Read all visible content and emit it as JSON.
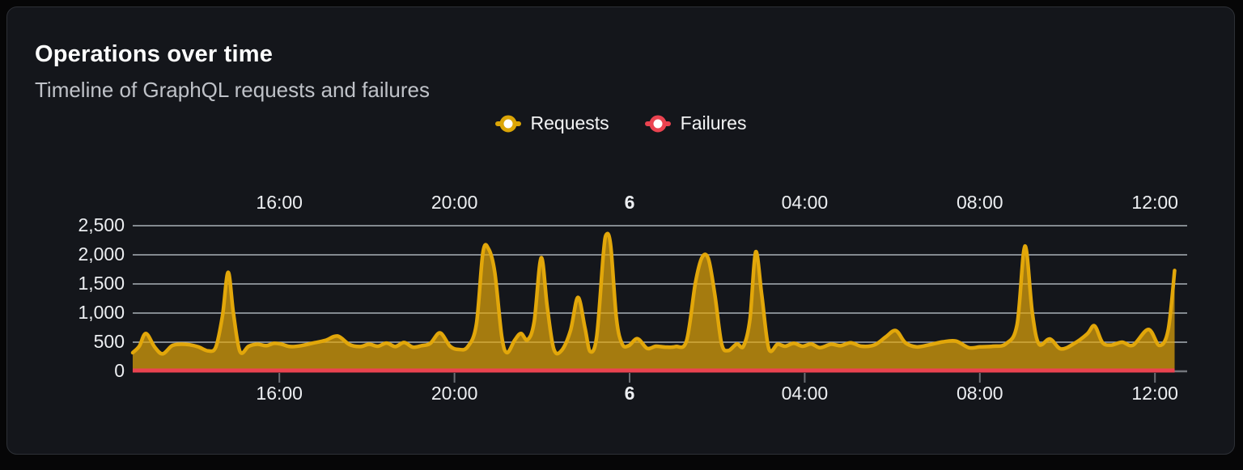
{
  "header": {
    "title": "Operations over time",
    "subtitle": "Timeline of GraphQL requests and failures"
  },
  "legend": {
    "items": [
      {
        "label": "Requests",
        "color": "#dba507"
      },
      {
        "label": "Failures",
        "color": "#ea4350"
      }
    ]
  },
  "chart_data": {
    "type": "area",
    "title": "Operations over time",
    "grid": true,
    "legend_position": "top-center",
    "colors": {
      "requests_line": "#e2a70a",
      "requests_fill_opacity": 0.7,
      "failures_line": "#ea4350",
      "gridline": "#ccd2da",
      "axis_line": "#73767c",
      "tick": "#6b6e74"
    },
    "x_axis": {
      "unit": "hours relative to midnight of day 6",
      "range": [
        -11.35,
        12.74
      ],
      "ticks": [
        {
          "pos": -8,
          "label": "16:00",
          "bold": false
        },
        {
          "pos": -4,
          "label": "20:00",
          "bold": false
        },
        {
          "pos": 0,
          "label": "6",
          "bold": true
        },
        {
          "pos": 4,
          "label": "04:00",
          "bold": false
        },
        {
          "pos": 8,
          "label": "08:00",
          "bold": false
        },
        {
          "pos": 12,
          "label": "12:00",
          "bold": false
        }
      ],
      "labels_shown": "top and bottom"
    },
    "y_axis": {
      "range": [
        0,
        2500
      ],
      "ticks": [
        {
          "value": 0,
          "label": "0"
        },
        {
          "value": 500,
          "label": "500"
        },
        {
          "value": 1000,
          "label": "1,000"
        },
        {
          "value": 1500,
          "label": "1,500"
        },
        {
          "value": 2000,
          "label": "2,000"
        },
        {
          "value": 2500,
          "label": "2,500"
        }
      ]
    },
    "series": [
      {
        "name": "Requests",
        "type": "area",
        "points": [
          [
            -11.35,
            320
          ],
          [
            -11.2,
            430
          ],
          [
            -11.05,
            650
          ],
          [
            -10.85,
            420
          ],
          [
            -10.67,
            300
          ],
          [
            -10.45,
            440
          ],
          [
            -10.25,
            465
          ],
          [
            -10.05,
            455
          ],
          [
            -9.85,
            420
          ],
          [
            -9.62,
            350
          ],
          [
            -9.45,
            420
          ],
          [
            -9.3,
            950
          ],
          [
            -9.17,
            1700
          ],
          [
            -9.05,
            1000
          ],
          [
            -8.9,
            340
          ],
          [
            -8.7,
            430
          ],
          [
            -8.5,
            465
          ],
          [
            -8.3,
            440
          ],
          [
            -8.12,
            480
          ],
          [
            -7.95,
            465
          ],
          [
            -7.75,
            425
          ],
          [
            -7.5,
            440
          ],
          [
            -7.2,
            490
          ],
          [
            -6.95,
            530
          ],
          [
            -6.67,
            605
          ],
          [
            -6.4,
            460
          ],
          [
            -6.15,
            425
          ],
          [
            -5.95,
            465
          ],
          [
            -5.75,
            430
          ],
          [
            -5.55,
            485
          ],
          [
            -5.35,
            425
          ],
          [
            -5.15,
            495
          ],
          [
            -4.95,
            415
          ],
          [
            -4.75,
            440
          ],
          [
            -4.55,
            480
          ],
          [
            -4.33,
            660
          ],
          [
            -4.1,
            430
          ],
          [
            -3.9,
            375
          ],
          [
            -3.7,
            420
          ],
          [
            -3.5,
            800
          ],
          [
            -3.35,
            2040
          ],
          [
            -3.22,
            2100
          ],
          [
            -3.08,
            1700
          ],
          [
            -2.92,
            600
          ],
          [
            -2.8,
            320
          ],
          [
            -2.62,
            540
          ],
          [
            -2.48,
            650
          ],
          [
            -2.33,
            540
          ],
          [
            -2.18,
            850
          ],
          [
            -2.02,
            1950
          ],
          [
            -1.88,
            1100
          ],
          [
            -1.73,
            380
          ],
          [
            -1.55,
            360
          ],
          [
            -1.35,
            700
          ],
          [
            -1.18,
            1270
          ],
          [
            -1.02,
            750
          ],
          [
            -0.9,
            340
          ],
          [
            -0.75,
            600
          ],
          [
            -0.6,
            2000
          ],
          [
            -0.53,
            2350
          ],
          [
            -0.43,
            2150
          ],
          [
            -0.3,
            900
          ],
          [
            -0.17,
            470
          ],
          [
            -0.02,
            440
          ],
          [
            0.18,
            560
          ],
          [
            0.4,
            395
          ],
          [
            0.6,
            430
          ],
          [
            0.82,
            415
          ],
          [
            1.05,
            425
          ],
          [
            1.3,
            520
          ],
          [
            1.5,
            1500
          ],
          [
            1.65,
            1950
          ],
          [
            1.8,
            1930
          ],
          [
            1.95,
            1300
          ],
          [
            2.1,
            480
          ],
          [
            2.25,
            355
          ],
          [
            2.45,
            470
          ],
          [
            2.6,
            430
          ],
          [
            2.75,
            900
          ],
          [
            2.88,
            2050
          ],
          [
            3.02,
            1300
          ],
          [
            3.18,
            390
          ],
          [
            3.38,
            465
          ],
          [
            3.55,
            430
          ],
          [
            3.75,
            480
          ],
          [
            3.95,
            430
          ],
          [
            4.15,
            470
          ],
          [
            4.35,
            405
          ],
          [
            4.6,
            465
          ],
          [
            4.82,
            440
          ],
          [
            5.05,
            490
          ],
          [
            5.3,
            430
          ],
          [
            5.6,
            455
          ],
          [
            5.85,
            590
          ],
          [
            6.08,
            700
          ],
          [
            6.3,
            490
          ],
          [
            6.55,
            420
          ],
          [
            6.85,
            455
          ],
          [
            7.15,
            505
          ],
          [
            7.45,
            520
          ],
          [
            7.75,
            405
          ],
          [
            8,
            420
          ],
          [
            8.3,
            430
          ],
          [
            8.6,
            475
          ],
          [
            8.85,
            800
          ],
          [
            9.03,
            2150
          ],
          [
            9.2,
            1000
          ],
          [
            9.35,
            470
          ],
          [
            9.6,
            555
          ],
          [
            9.85,
            385
          ],
          [
            10.15,
            475
          ],
          [
            10.45,
            640
          ],
          [
            10.62,
            780
          ],
          [
            10.8,
            495
          ],
          [
            11,
            450
          ],
          [
            11.25,
            500
          ],
          [
            11.5,
            450
          ],
          [
            11.85,
            720
          ],
          [
            12.1,
            445
          ],
          [
            12.3,
            700
          ],
          [
            12.45,
            1730
          ]
        ]
      },
      {
        "name": "Failures",
        "type": "line",
        "points": [
          [
            -11.35,
            0
          ],
          [
            12.45,
            0
          ]
        ]
      }
    ]
  }
}
